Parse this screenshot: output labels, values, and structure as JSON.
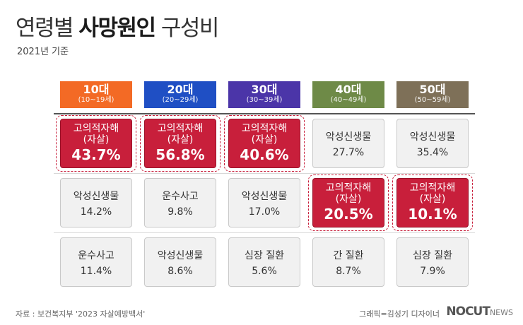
{
  "title": {
    "prefix": "연령별 ",
    "bold": "사망원인",
    "suffix": " 구성비"
  },
  "subtitle": "2021년 기준",
  "footer": {
    "source": "자료 : 보건복지부 '2023 자살예방백서'",
    "credit": "그래픽=김성기 디자이너",
    "logo_main": "NOCUT",
    "logo_sub": "NEWS"
  },
  "colors": {
    "header_10s": "#f36a25",
    "header_20s": "#1f4fc4",
    "header_30s": "#4b35a8",
    "header_40s": "#6e8a47",
    "header_50s": "#7e7058",
    "highlight": "#c81f3b",
    "neutral": "#f1f1f1"
  },
  "chart_data": {
    "type": "table",
    "columns": [
      {
        "age": "10대",
        "range": "10~19세"
      },
      {
        "age": "20대",
        "range": "20~29세"
      },
      {
        "age": "30대",
        "range": "30~39세"
      },
      {
        "age": "40대",
        "range": "40~49세"
      },
      {
        "age": "50대",
        "range": "50~59세"
      }
    ],
    "rows": [
      [
        {
          "cause": "고의적자해",
          "sub": "자살",
          "value": 43.7,
          "label": "43.7%",
          "highlight": true
        },
        {
          "cause": "고의적자해",
          "sub": "자살",
          "value": 56.8,
          "label": "56.8%",
          "highlight": true
        },
        {
          "cause": "고의적자해",
          "sub": "자살",
          "value": 40.6,
          "label": "40.6%",
          "highlight": true
        },
        {
          "cause": "악성신생물",
          "value": 27.7,
          "label": "27.7%",
          "highlight": false
        },
        {
          "cause": "악성신생물",
          "value": 35.4,
          "label": "35.4%",
          "highlight": false
        }
      ],
      [
        {
          "cause": "악성신생물",
          "value": 14.2,
          "label": "14.2%",
          "highlight": false
        },
        {
          "cause": "운수사고",
          "value": 9.8,
          "label": "9.8%",
          "highlight": false
        },
        {
          "cause": "악성신생물",
          "value": 17.0,
          "label": "17.0%",
          "highlight": false
        },
        {
          "cause": "고의적자해",
          "sub": "자살",
          "value": 20.5,
          "label": "20.5%",
          "highlight": true
        },
        {
          "cause": "고의적자해",
          "sub": "자살",
          "value": 10.1,
          "label": "10.1%",
          "highlight": true
        }
      ],
      [
        {
          "cause": "운수사고",
          "value": 11.4,
          "label": "11.4%",
          "highlight": false
        },
        {
          "cause": "악성신생물",
          "value": 8.6,
          "label": "8.6%",
          "highlight": false
        },
        {
          "cause": "심장 질환",
          "value": 5.6,
          "label": "5.6%",
          "highlight": false
        },
        {
          "cause": "간 질환",
          "value": 8.7,
          "label": "8.7%",
          "highlight": false
        },
        {
          "cause": "심장 질환",
          "value": 7.9,
          "label": "7.9%",
          "highlight": false
        }
      ]
    ]
  }
}
